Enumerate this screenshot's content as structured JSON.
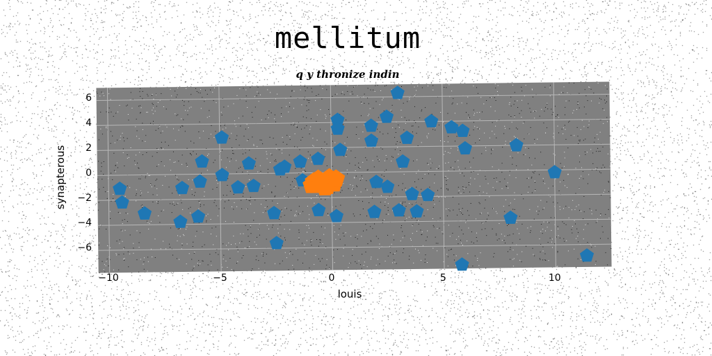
{
  "chart_data": {
    "type": "scatter",
    "title": "mellitum",
    "subtitle": "q y thronize indin",
    "xlabel": "louis",
    "ylabel": "synapterous",
    "xlim": [
      -10.5,
      12.5
    ],
    "ylim": [
      -7.8,
      7.0
    ],
    "x_ticks": [
      -10,
      -5,
      0,
      5,
      10
    ],
    "y_ticks": [
      -6,
      -4,
      -2,
      0,
      2,
      4,
      6
    ],
    "x_tick_labels": [
      "−10",
      "−5",
      "0",
      "5",
      "10"
    ],
    "y_tick_labels": [
      "−6",
      "−4",
      "−2",
      "0",
      "2",
      "4",
      "6"
    ],
    "grid": true,
    "plot_background": "#808080",
    "series": [
      {
        "color": "#1f77b4",
        "marker": "pentagon",
        "points": [
          [
            -9.5,
            -1.1
          ],
          [
            -9.4,
            -2.2
          ],
          [
            -8.4,
            -3.1
          ],
          [
            -6.8,
            -3.8
          ],
          [
            -6.7,
            -1.1
          ],
          [
            -6.0,
            -3.4
          ],
          [
            -5.9,
            -0.6
          ],
          [
            -5.8,
            1.0
          ],
          [
            -4.9,
            2.9
          ],
          [
            -4.9,
            -0.1
          ],
          [
            -4.2,
            -1.1
          ],
          [
            -3.7,
            0.8
          ],
          [
            -3.5,
            -1.0
          ],
          [
            -2.6,
            -3.2
          ],
          [
            -2.5,
            -5.6
          ],
          [
            -2.3,
            0.3
          ],
          [
            -2.1,
            0.5
          ],
          [
            -1.4,
            0.9
          ],
          [
            -1.3,
            -0.6
          ],
          [
            -0.6,
            1.1
          ],
          [
            -0.6,
            -3.0
          ],
          [
            0.3,
            4.2
          ],
          [
            0.3,
            3.5
          ],
          [
            0.4,
            1.8
          ],
          [
            0.2,
            -3.5
          ],
          [
            1.8,
            3.7
          ],
          [
            1.8,
            2.5
          ],
          [
            2.0,
            -0.8
          ],
          [
            1.9,
            -3.2
          ],
          [
            2.5,
            4.4
          ],
          [
            2.5,
            -1.2
          ],
          [
            3.0,
            6.3
          ],
          [
            3.2,
            0.8
          ],
          [
            3.0,
            -3.1
          ],
          [
            3.4,
            2.7
          ],
          [
            3.6,
            -1.8
          ],
          [
            3.8,
            -3.2
          ],
          [
            4.3,
            -1.9
          ],
          [
            4.5,
            4.0
          ],
          [
            5.4,
            3.5
          ],
          [
            5.9,
            3.2
          ],
          [
            6.0,
            1.8
          ],
          [
            5.8,
            -7.5
          ],
          [
            8.0,
            -3.8
          ],
          [
            8.3,
            2.0
          ],
          [
            10.0,
            -0.2
          ],
          [
            11.4,
            -6.9
          ]
        ]
      },
      {
        "color": "#ff7f0e",
        "marker": "pentagon",
        "points": [
          [
            -0.8,
            -0.7
          ],
          [
            -0.7,
            -1.0
          ],
          [
            -0.4,
            -0.8
          ],
          [
            -0.2,
            -1.1
          ],
          [
            0.0,
            -0.6
          ],
          [
            0.1,
            -0.9
          ],
          [
            -0.6,
            -0.5
          ],
          [
            -0.1,
            -0.4
          ],
          [
            -0.9,
            -1.0
          ],
          [
            -0.3,
            -1.2
          ],
          [
            0.2,
            -0.5
          ],
          [
            -0.5,
            -0.9
          ]
        ]
      }
    ]
  }
}
